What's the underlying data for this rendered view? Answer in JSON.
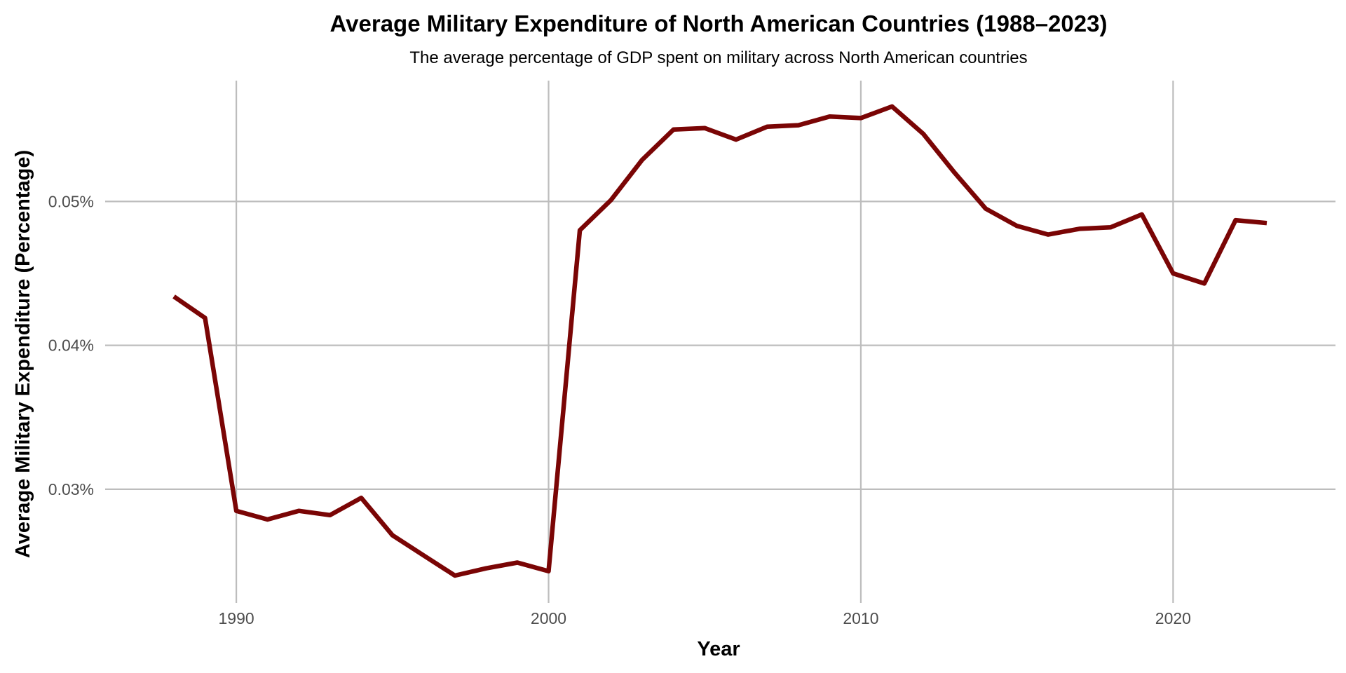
{
  "chart_data": {
    "type": "line",
    "title": "Average Military Expenditure of North American Countries (1988–2023)",
    "subtitle": "The average percentage of GDP spent on military across North American countries",
    "xlabel": "Year",
    "ylabel": "Average Military Expenditure (Percentage)",
    "xlim": [
      1985.8,
      2025.2
    ],
    "ylim": [
      0.0221,
      0.0584
    ],
    "x_ticks": [
      1990,
      2000,
      2010,
      2020
    ],
    "x_tick_labels": [
      "1990",
      "2000",
      "2010",
      "2020"
    ],
    "y_ticks": [
      0.03,
      0.04,
      0.05
    ],
    "y_tick_labels": [
      "0.03%",
      "0.04%",
      "0.05%"
    ],
    "grid": true,
    "legend": "none",
    "colors": {
      "line": "#7a0505",
      "grid": "#bdbdbd"
    },
    "series": [
      {
        "x": [
          1988,
          1989,
          1990,
          1991,
          1992,
          1993,
          1994,
          1995,
          1996,
          1997,
          1998,
          1999,
          2000,
          2001,
          2002,
          2003,
          2004,
          2005,
          2006,
          2007,
          2008,
          2009,
          2010,
          2011,
          2012,
          2013,
          2014,
          2015,
          2016,
          2017,
          2018,
          2019,
          2020,
          2021,
          2022,
          2023
        ],
        "values": [
          0.0434,
          0.0419,
          0.0285,
          0.0279,
          0.0285,
          0.0282,
          0.0294,
          0.0268,
          0.0254,
          0.024,
          0.0245,
          0.0249,
          0.0243,
          0.048,
          0.0501,
          0.0529,
          0.055,
          0.0551,
          0.0543,
          0.0552,
          0.0553,
          0.0559,
          0.0558,
          0.0566,
          0.0547,
          0.052,
          0.0495,
          0.0483,
          0.0477,
          0.0481,
          0.0482,
          0.0491,
          0.045,
          0.0443,
          0.0487,
          0.0485
        ]
      }
    ]
  }
}
